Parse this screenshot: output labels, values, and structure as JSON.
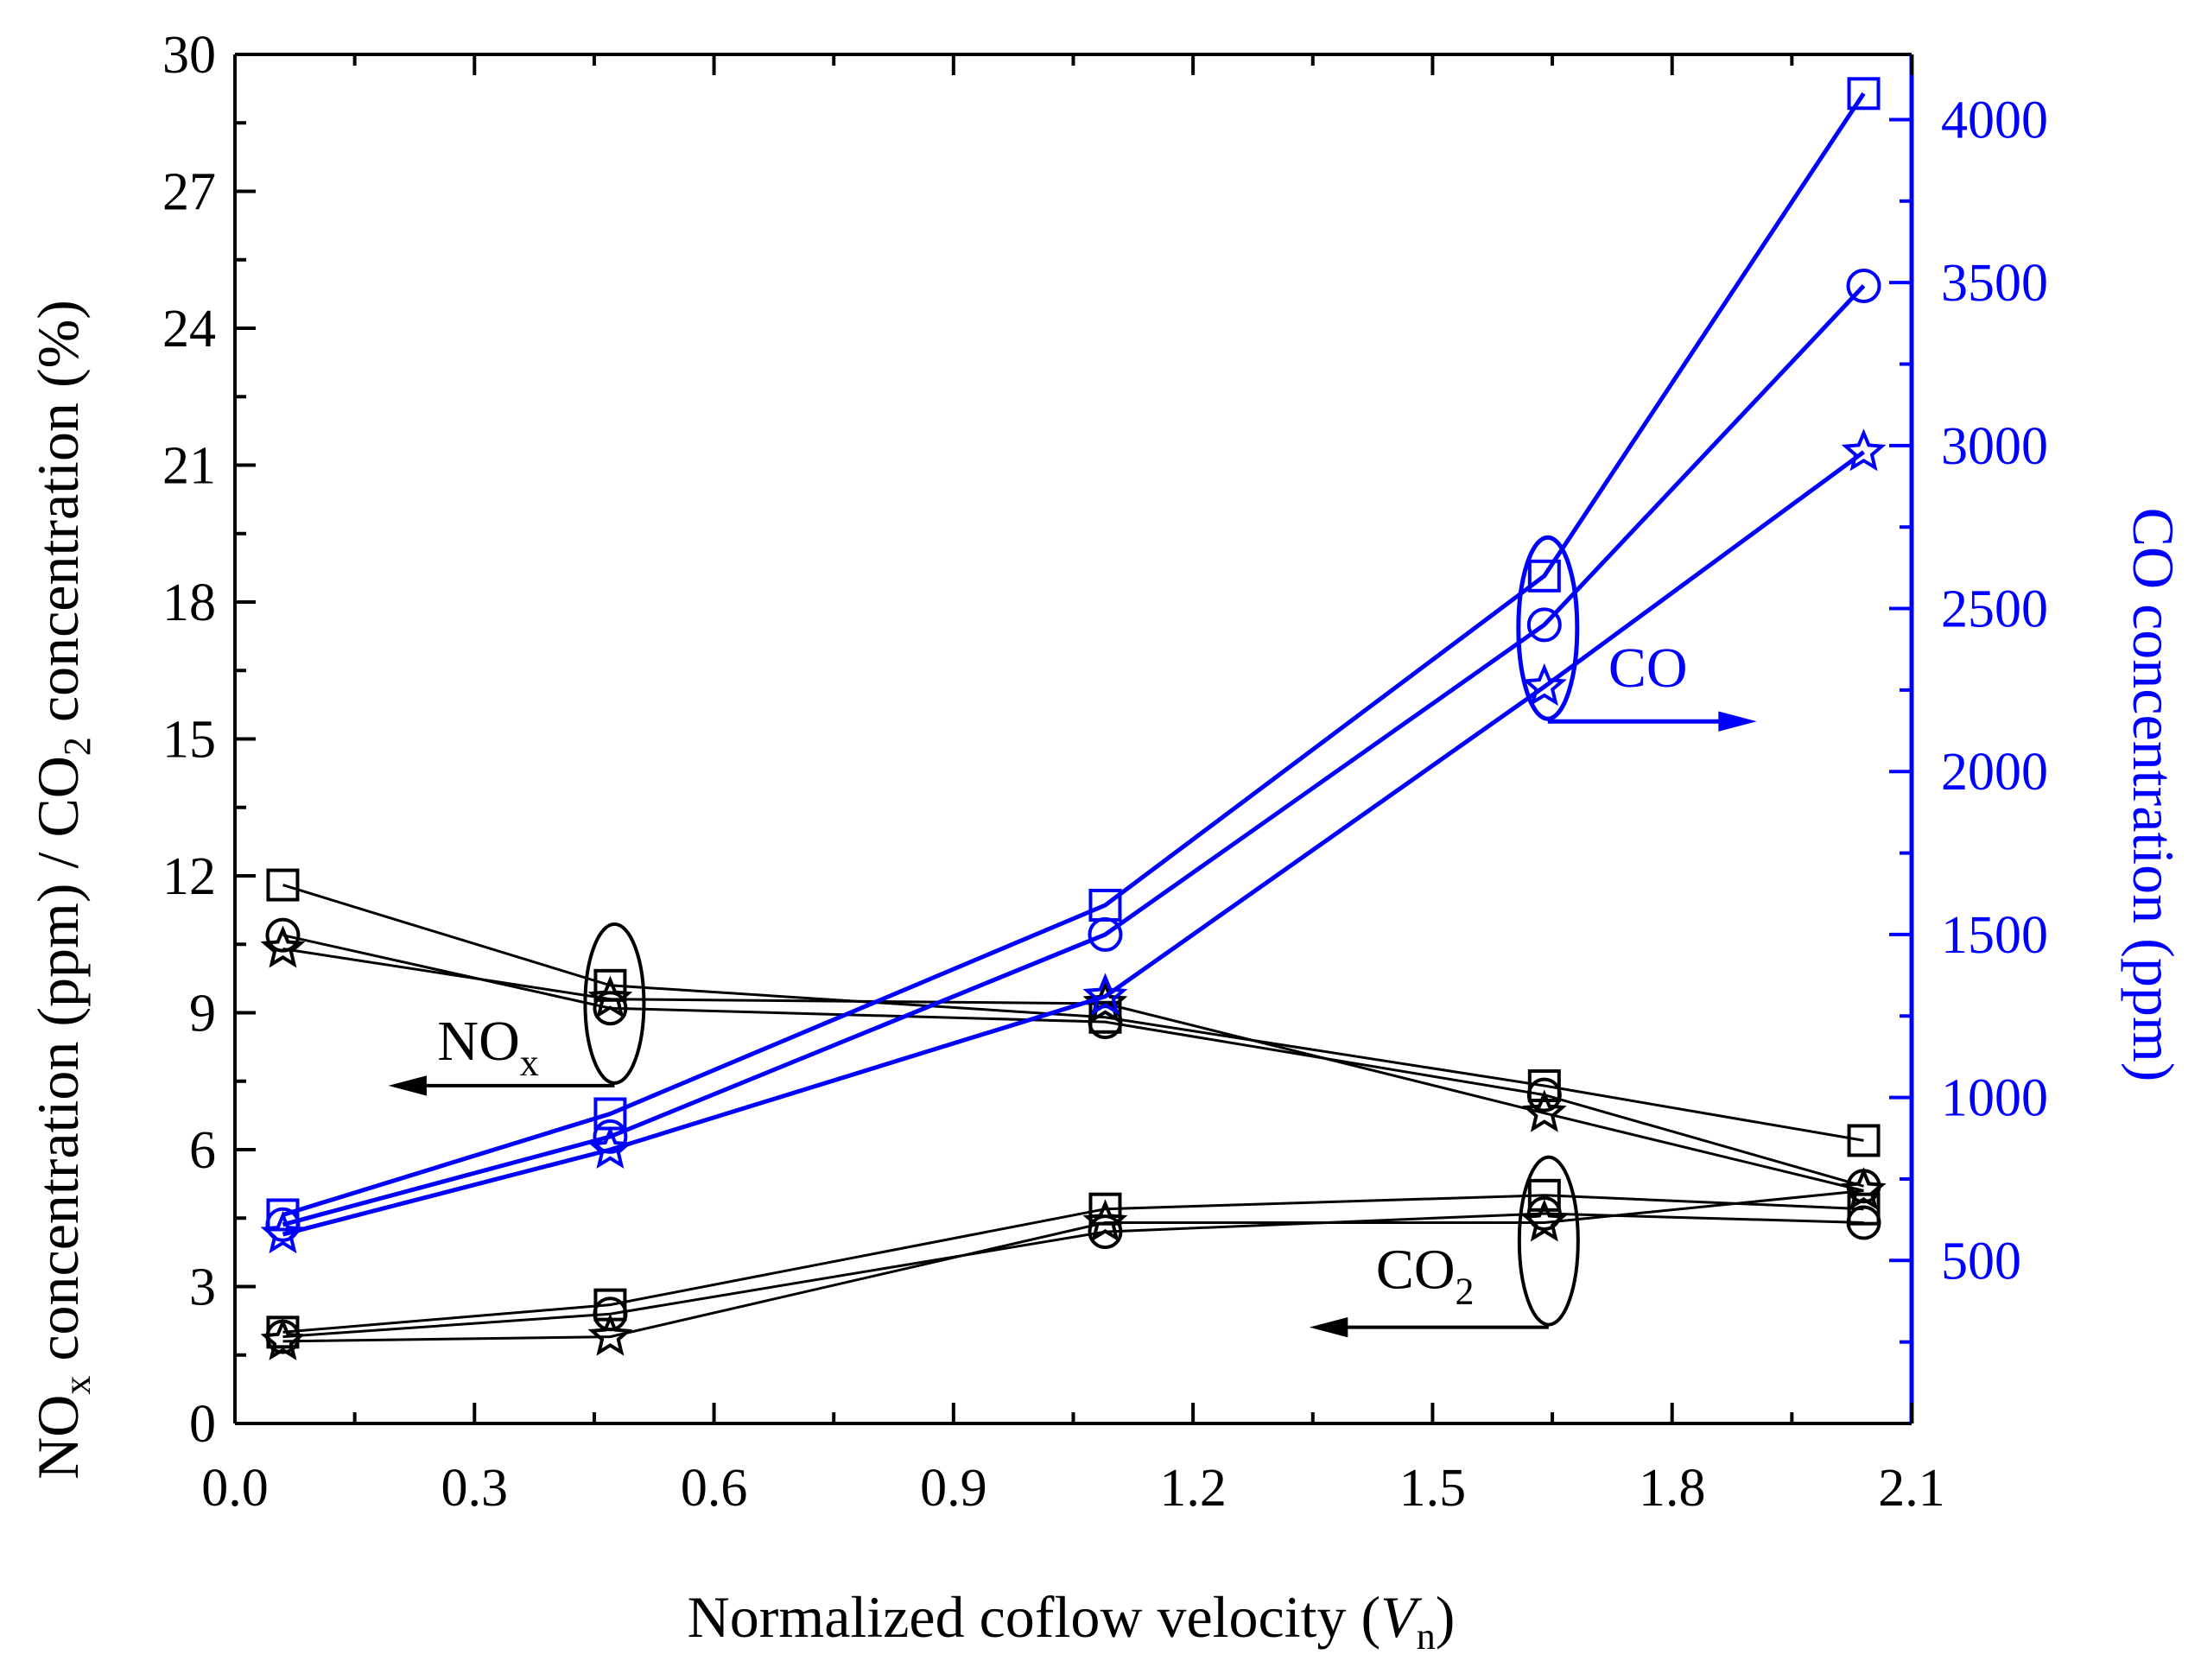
{
  "chart_data": {
    "type": "line",
    "xlabel_main": "Normalized coflow velocity (",
    "xlabel_italic": "V",
    "xlabel_sub": "n",
    "xlabel_close": ")",
    "ylabel_left_parts": [
      "NO",
      "x",
      " concentration (ppm) / CO",
      "2",
      " concentration (%)"
    ],
    "ylabel_right": "CO concentration (ppm)",
    "xlim": [
      0.0,
      2.1
    ],
    "ylim_left": [
      0,
      30
    ],
    "ylim_right": [
      0,
      4200
    ],
    "x_ticks": [
      "0.0",
      "0.3",
      "0.6",
      "0.9",
      "1.2",
      "1.5",
      "1.8",
      "2.1"
    ],
    "y_left_ticks": [
      "0",
      "3",
      "6",
      "9",
      "12",
      "15",
      "18",
      "21",
      "24",
      "27",
      "30"
    ],
    "y_right_ticks": [
      "500",
      "1000",
      "1500",
      "2000",
      "2500",
      "3000",
      "3500",
      "4000"
    ],
    "x": [
      0.06,
      0.47,
      1.09,
      1.64,
      2.04
    ],
    "series": [
      {
        "group": "NOx",
        "axis": "left",
        "color": "#000000",
        "marker": "square",
        "values": [
          11.8,
          9.6,
          8.9,
          7.4,
          6.2
        ]
      },
      {
        "group": "NOx",
        "axis": "left",
        "color": "#000000",
        "marker": "circle",
        "values": [
          10.7,
          9.1,
          8.8,
          7.2,
          5.2
        ]
      },
      {
        "group": "NOx",
        "axis": "left",
        "color": "#000000",
        "marker": "star",
        "values": [
          10.4,
          9.3,
          9.2,
          6.8,
          5.1
        ]
      },
      {
        "group": "CO2",
        "axis": "left",
        "color": "#000000",
        "marker": "square",
        "values": [
          2.0,
          2.6,
          4.7,
          5.0,
          4.7
        ]
      },
      {
        "group": "CO2",
        "axis": "left",
        "color": "#000000",
        "marker": "circle",
        "values": [
          1.9,
          2.4,
          4.2,
          4.6,
          4.4
        ]
      },
      {
        "group": "CO2",
        "axis": "left",
        "color": "#000000",
        "marker": "star",
        "values": [
          1.8,
          1.9,
          4.4,
          4.4,
          5.1
        ]
      },
      {
        "group": "CO",
        "axis": "right",
        "color": "#0000ff",
        "marker": "square",
        "values": [
          640,
          950,
          1590,
          2600,
          4080
        ]
      },
      {
        "group": "CO",
        "axis": "right",
        "color": "#0000ff",
        "marker": "circle",
        "values": [
          610,
          880,
          1500,
          2450,
          3490
        ]
      },
      {
        "group": "CO",
        "axis": "right",
        "color": "#0000ff",
        "marker": "star",
        "values": [
          580,
          840,
          1310,
          2260,
          2980
        ]
      }
    ],
    "annotations": [
      {
        "id": "nox",
        "text": "NO",
        "sub": "x",
        "arrow_dir": "left"
      },
      {
        "id": "co2",
        "text": "CO",
        "sub": "2",
        "arrow_dir": "left"
      },
      {
        "id": "co",
        "text": "CO",
        "sub": "",
        "arrow_dir": "right"
      }
    ]
  },
  "colors": {
    "left_axis": "#000000",
    "right_axis": "#0000ff"
  }
}
